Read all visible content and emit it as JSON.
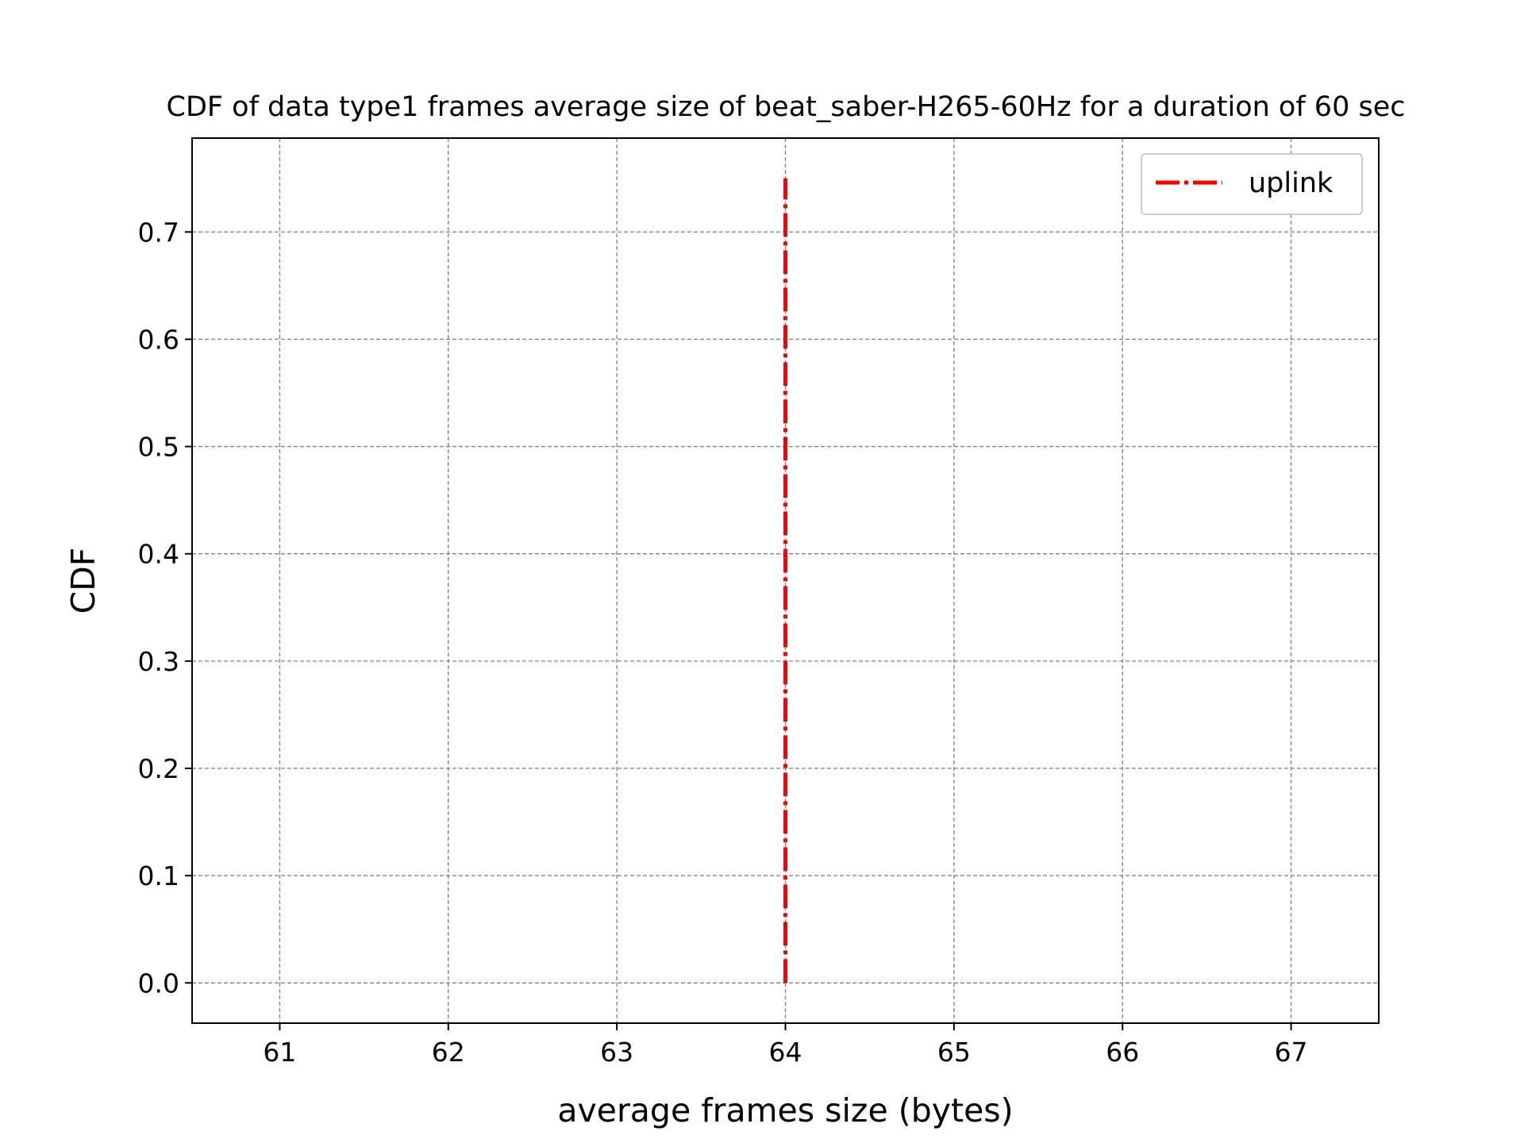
{
  "chart_data": {
    "type": "line",
    "title": "CDF of data type1 frames average size of beat_saber-H265-60Hz for a duration of 60 sec",
    "xlabel": "average frames size (bytes)",
    "ylabel": "CDF",
    "xlim": [
      60.48,
      67.52
    ],
    "ylim": [
      -0.0375,
      0.7875
    ],
    "xticks": [
      61,
      62,
      63,
      64,
      65,
      66,
      67
    ],
    "xtick_labels": [
      "61",
      "62",
      "63",
      "64",
      "65",
      "66",
      "67"
    ],
    "yticks": [
      0.0,
      0.1,
      0.2,
      0.3,
      0.4,
      0.5,
      0.6,
      0.7
    ],
    "ytick_labels": [
      "0.0",
      "0.1",
      "0.2",
      "0.3",
      "0.4",
      "0.5",
      "0.6",
      "0.7"
    ],
    "grid": true,
    "legend_position": "top-right",
    "series": [
      {
        "name": "uplink",
        "color": "#ff0000",
        "line_style": "dash-dot",
        "x": [
          64,
          64
        ],
        "y": [
          0.0,
          0.75
        ]
      }
    ]
  }
}
